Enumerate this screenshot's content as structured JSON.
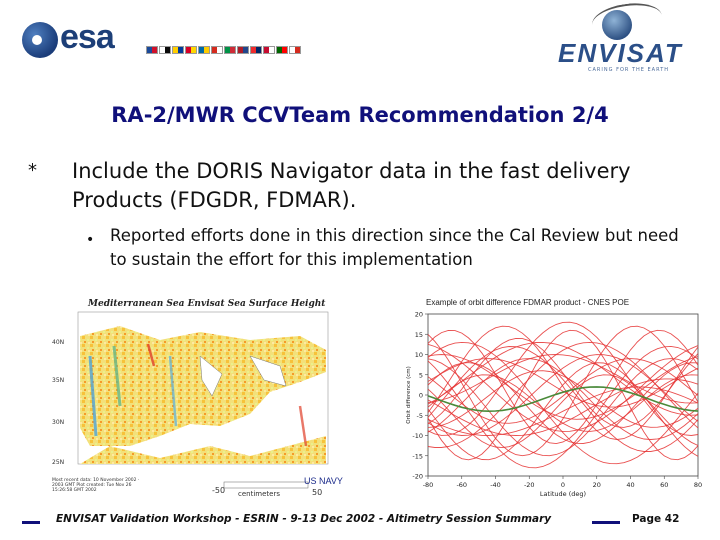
{
  "header": {
    "esa_logo_text": "esa",
    "envisat_logo_text": "ENVISAT",
    "envisat_tagline": "CARING FOR THE EARTH",
    "flags": [
      "#1a4a9a",
      "#d0102a",
      "#ffffff",
      "#0a0a0a",
      "#ffce00",
      "#003b9a",
      "#d80027",
      "#ffd700",
      "#006aa7",
      "#fecc00",
      "#d52b1e",
      "#ffffff",
      "#009246",
      "#ce2b37",
      "#ae1c28",
      "#21468b",
      "#ef2b2d",
      "#002868",
      "#c60c30",
      "#ffffff",
      "#006600",
      "#ff0000",
      "#ffffff",
      "#d52b1e"
    ]
  },
  "slide": {
    "title": "RA-2/MWR CCVTeam Recommendation 2/4",
    "bullet1_marker": "*",
    "bullet1_text": "Include the DORIS Navigator data in the fast delivery Products (FDGDR, FDMAR).",
    "bullet2_marker": "•",
    "bullet2_text": "Reported efforts done in this direction since the Cal Review but need to sustain the effort for this implementation"
  },
  "map_figure": {
    "title": "Mediterranean Sea Envisat Sea Surface Height",
    "source_label": "US NAVY",
    "units_label": "centimeters",
    "colorbar_min": "-50",
    "colorbar_max": "50",
    "note": "Most recent data: 10 November 2002 · 2003 GMT Plot created: Tue Nov 26 15:26:58 GMT 2002"
  },
  "chart_figure": {
    "title": "Example of orbit difference FDMAR product - CNES POE",
    "y_label": "Orbit difference (cm)",
    "x_label": "Latitude (deg)"
  },
  "chart_data": {
    "type": "line",
    "title": "Example of orbit difference FDMAR product - CNES POE",
    "xlabel": "Latitude (deg)",
    "ylabel": "Orbit difference (cm)",
    "xlim": [
      -80,
      80
    ],
    "ylim": [
      -20,
      20
    ],
    "x_ticks": [
      -80,
      -60,
      -40,
      -20,
      0,
      20,
      40,
      60,
      80
    ],
    "y_ticks": [
      -20,
      -15,
      -10,
      -5,
      0,
      5,
      10,
      15,
      20
    ],
    "grid": false,
    "series_color": "#e53030",
    "mean_color": "#4a8a3a"
  },
  "footer": {
    "text": "ENVISAT Validation Workshop - ESRIN - 9-13 Dec 2002 - Altimetry Session Summary",
    "page": "Page 42"
  }
}
